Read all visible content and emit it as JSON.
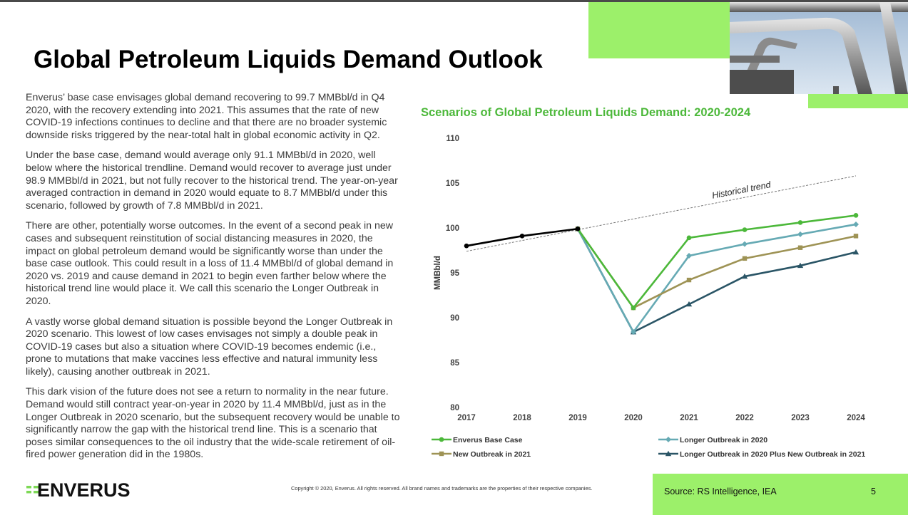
{
  "slide": {
    "title": "Global Petroleum Liquids Demand Outlook",
    "paragraphs": [
      "Enverus’ base case envisages global demand recovering to 99.7 MMBbl/d in Q4 2020, with the recovery extending into 2021. This assumes that the rate of new COVID-19 infections continues to decline and that there are no broader systemic downside risks triggered by the near-total halt in global economic activity in Q2.",
      "Under the base case, demand would average only 91.1 MMBbl/d in 2020, well below where the historical trendline. Demand would recover to average just under 98.9 MMBbl/d in 2021, but not fully recover to the historical trend. The year-on-year averaged contraction in demand in 2020 would equate to 8.7 MMBbl/d under this scenario, followed by growth of 7.8 MMBbl/d in 2021.",
      "There are other, potentially worse outcomes. In the event of a second peak in new cases and subsequent reinstitution of social distancing measures in 2020, the impact on global petroleum demand would be significantly worse than under the base case outlook. This could result in a loss of 11.4 MMBbl/d of global demand in 2020 vs. 2019 and cause demand in 2021 to begin even farther below where the historical trend line would place it. We call this scenario the Longer Outbreak in 2020.",
      "A vastly worse global demand situation is possible beyond the Longer Outbreak in 2020 scenario. This lowest of low cases envisages not simply a double peak in COVID-19 cases but also a situation where COVID-19 becomes endemic (i.e., prone to mutations that make vaccines less effective and natural immunity less likely), causing another outbreak in 2021.",
      "This dark vision of the future does not see a return to normality in the near future. Demand would still contract year-on-year in 2020 by 11.4 MMBbl/d, just as in the Longer Outbreak in 2020 scenario, but the subsequent recovery would be unable to significantly narrow the gap with the historical trend line. This is a scenario that poses similar consequences to the oil industry that the wide-scale retirement of oil-fired power generation did in the 1980s."
    ],
    "copyright": "Copyright © 2020, Enverus. All rights reserved. All brand names and trademarks are the properties of their respective companies.",
    "source": "Source: RS Intelligence, IEA",
    "page_number": "5",
    "logo_text": "ENVERUS"
  },
  "chart_data": {
    "type": "line",
    "title": "Scenarios of Global Petroleum Liquids Demand: 2020-2024",
    "xlabel": "",
    "ylabel": "MMBbl/d",
    "x": [
      2017,
      2018,
      2019,
      2020,
      2021,
      2022,
      2023,
      2024
    ],
    "ylim": [
      80,
      110
    ],
    "yticks": [
      80,
      85,
      90,
      95,
      100,
      105,
      110
    ],
    "grid": false,
    "legend": "bottom",
    "historical": {
      "x": [
        2017,
        2018,
        2019
      ],
      "values": [
        98.0,
        99.1,
        99.9
      ],
      "color": "#000000"
    },
    "trend": {
      "label": "Historical trend",
      "x": [
        2017,
        2024
      ],
      "values": [
        97.4,
        105.8
      ],
      "color": "#777777"
    },
    "series": [
      {
        "name": "Enverus Base Case",
        "color": "#4cb83a",
        "marker": "circle",
        "values": [
          null,
          null,
          99.9,
          91.1,
          98.9,
          99.8,
          100.6,
          101.4
        ]
      },
      {
        "name": "New Outbreak in 2021",
        "color": "#9e9355",
        "marker": "square",
        "values": [
          null,
          null,
          99.9,
          91.1,
          94.2,
          96.6,
          97.8,
          99.1
        ]
      },
      {
        "name": "Longer Outbreak in 2020",
        "color": "#66aab4",
        "marker": "diamond",
        "values": [
          null,
          null,
          99.9,
          88.4,
          96.9,
          98.2,
          99.3,
          100.4
        ]
      },
      {
        "name": "Longer Outbreak in 2020 Plus New Outbreak in 2021",
        "color": "#2a5566",
        "marker": "triangle",
        "values": [
          null,
          null,
          99.9,
          88.4,
          91.5,
          94.6,
          95.8,
          97.3
        ]
      }
    ],
    "colors": {
      "accent_green": "#9cf06a",
      "title_green": "#4cb83a"
    }
  }
}
